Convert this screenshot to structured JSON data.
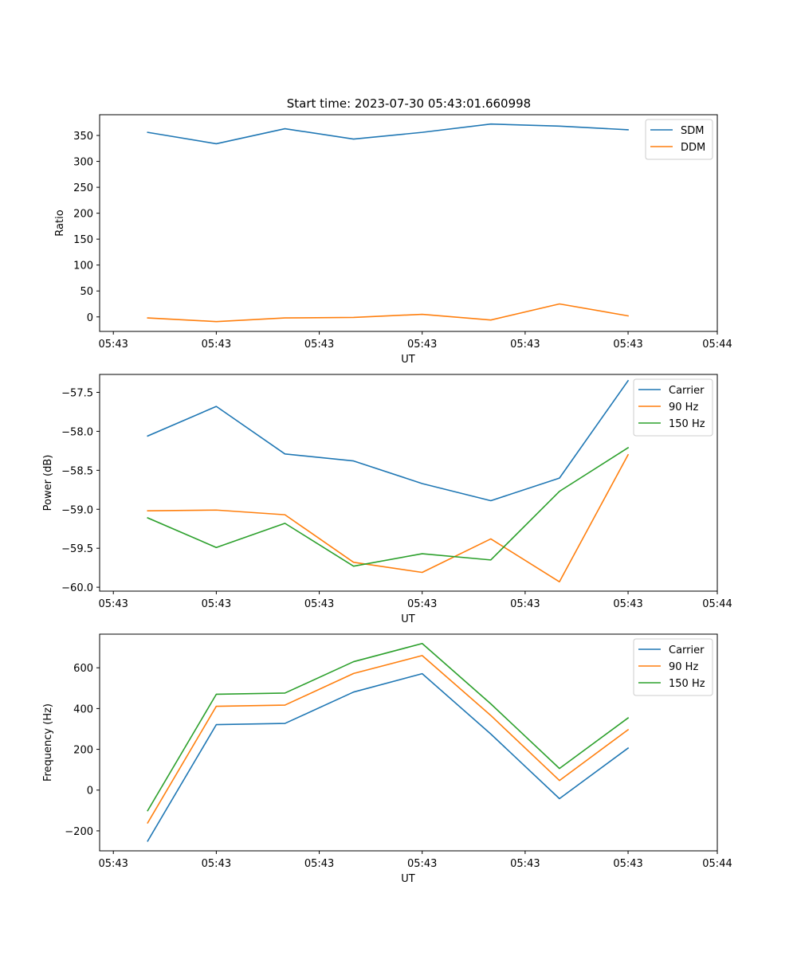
{
  "figure_title": "Start time: 2023-07-30 05:43:01.660998",
  "colors": {
    "blue": "#1f77b4",
    "orange": "#ff7f0e",
    "green": "#2ca02c"
  },
  "chart_data": [
    {
      "type": "line",
      "title": "Start time: 2023-07-30 05:43:01.660998",
      "xlabel": "UT",
      "ylabel": "Ratio",
      "x": [
        1,
        2,
        3,
        4,
        5,
        6,
        7,
        8
      ],
      "xlim": [
        0.3,
        9.3
      ],
      "xticks": [
        0.5,
        2,
        3.5,
        5,
        6.5,
        8,
        9.3
      ],
      "xtick_labels": [
        "05:43",
        "05:43",
        "05:43",
        "05:43",
        "05:43",
        "05:43",
        "05:44"
      ],
      "ylim": [
        -28,
        390
      ],
      "yticks": [
        0,
        50,
        100,
        150,
        200,
        250,
        300,
        350
      ],
      "ytick_labels": [
        "0",
        "50",
        "100",
        "150",
        "200",
        "250",
        "300",
        "350"
      ],
      "legend_position": "upper-right",
      "series": [
        {
          "name": "SDM",
          "color": "#1f77b4",
          "values": [
            356,
            334,
            363,
            343,
            356,
            372,
            368,
            361
          ]
        },
        {
          "name": "DDM",
          "color": "#ff7f0e",
          "values": [
            -2,
            -9,
            -2,
            -1,
            5,
            -6,
            25,
            2
          ]
        }
      ]
    },
    {
      "type": "line",
      "title": "",
      "xlabel": "UT",
      "ylabel": "Power (dB)",
      "x": [
        1,
        2,
        3,
        4,
        5,
        6,
        7,
        8
      ],
      "xlim": [
        0.3,
        9.3
      ],
      "xticks": [
        0.5,
        2,
        3.5,
        5,
        6.5,
        8,
        9.3
      ],
      "xtick_labels": [
        "05:43",
        "05:43",
        "05:43",
        "05:43",
        "05:43",
        "05:43",
        "05:44"
      ],
      "ylim": [
        -60.05,
        -57.27
      ],
      "yticks": [
        -60.0,
        -59.5,
        -59.0,
        -58.5,
        -58.0,
        -57.5
      ],
      "ytick_labels": [
        "−60.0",
        "−59.5",
        "−59.0",
        "−58.5",
        "−58.0",
        "−57.5"
      ],
      "legend_position": "upper-right",
      "series": [
        {
          "name": "Carrier",
          "color": "#1f77b4",
          "values": [
            -58.06,
            -57.68,
            -58.29,
            -58.38,
            -58.67,
            -58.89,
            -58.6,
            -57.35
          ]
        },
        {
          "name": "90 Hz",
          "color": "#ff7f0e",
          "values": [
            -59.02,
            -59.01,
            -59.07,
            -59.68,
            -59.81,
            -59.38,
            -59.93,
            -58.3
          ]
        },
        {
          "name": "150 Hz",
          "color": "#2ca02c",
          "values": [
            -59.11,
            -59.49,
            -59.18,
            -59.73,
            -59.57,
            -59.65,
            -58.77,
            -58.21
          ]
        }
      ]
    },
    {
      "type": "line",
      "title": "",
      "xlabel": "UT",
      "ylabel": "Frequency (Hz)",
      "x": [
        1,
        2,
        3,
        4,
        5,
        6,
        7,
        8
      ],
      "xlim": [
        0.3,
        9.3
      ],
      "xticks": [
        0.5,
        2,
        3.5,
        5,
        6.5,
        8,
        9.3
      ],
      "xtick_labels": [
        "05:43",
        "05:43",
        "05:43",
        "05:43",
        "05:43",
        "05:43",
        "05:44"
      ],
      "ylim": [
        -298,
        765
      ],
      "yticks": [
        -200,
        0,
        200,
        400,
        600
      ],
      "ytick_labels": [
        "−200",
        "0",
        "200",
        "400",
        "600"
      ],
      "legend_position": "upper-right",
      "series": [
        {
          "name": "Carrier",
          "color": "#1f77b4",
          "values": [
            -250,
            321,
            327,
            481,
            571,
            275,
            -42,
            206
          ]
        },
        {
          "name": "90 Hz",
          "color": "#ff7f0e",
          "values": [
            -161,
            411,
            417,
            572,
            660,
            366,
            47,
            296
          ]
        },
        {
          "name": "150 Hz",
          "color": "#2ca02c",
          "values": [
            -101,
            470,
            476,
            630,
            719,
            423,
            106,
            354
          ]
        }
      ]
    }
  ]
}
